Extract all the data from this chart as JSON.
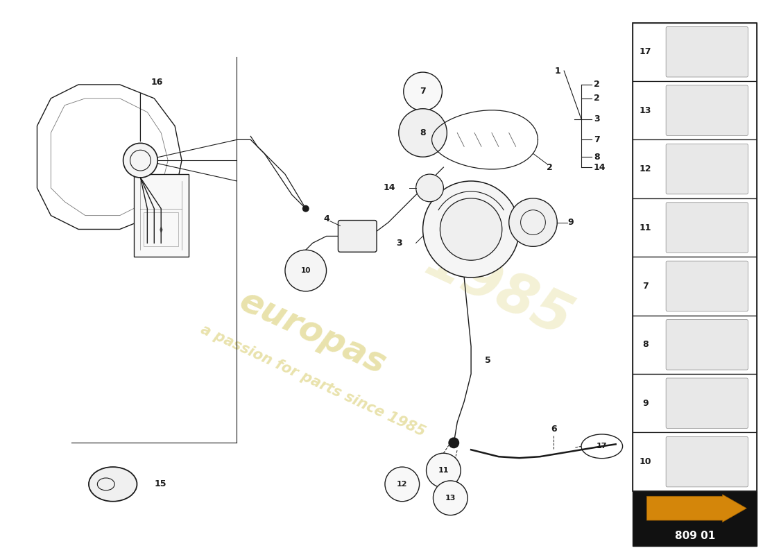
{
  "bg_color": "#ffffff",
  "line_color": "#1a1a1a",
  "watermark_color_wm": "#c8b830",
  "page_code": "809 01",
  "arrow_color": "#e8a000",
  "sidebar_items": [
    "17",
    "13",
    "12",
    "11",
    "7",
    "8",
    "9",
    "10"
  ]
}
